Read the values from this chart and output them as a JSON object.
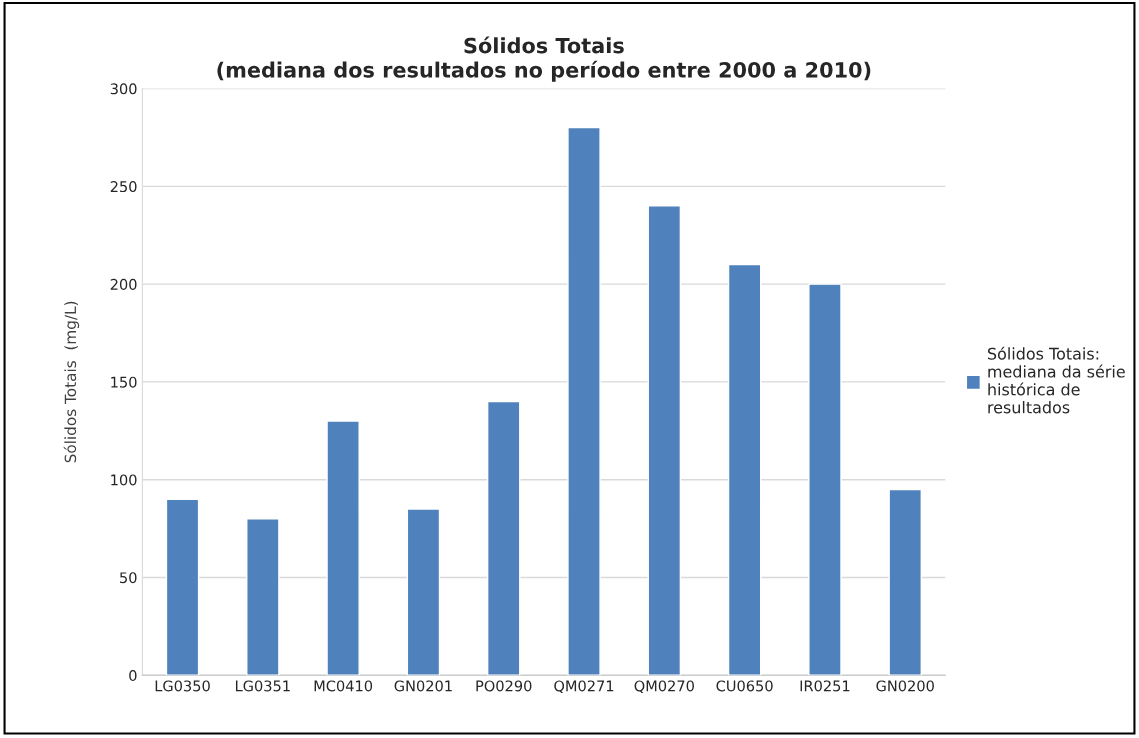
{
  "chart_data": {
    "type": "bar",
    "title": "Sólidos Totais\n(mediana dos resultados no período entre 2000 a 2010)",
    "ylabel": "Sólidos Totais  (mg/L)",
    "categories": [
      "LG0350",
      "LG0351",
      "MC0410",
      "GN0201",
      "PO0290",
      "QM0271",
      "QM0270",
      "CU0650",
      "IR0251",
      "GN0200"
    ],
    "series": [
      {
        "name": "Sólidos Totais:\nmediana da série\nhistórica de\nresultados",
        "color": "#4f81bd",
        "values": [
          90,
          80,
          130,
          85,
          140,
          280,
          240,
          210,
          200,
          95
        ]
      }
    ],
    "ylim": [
      0,
      300
    ],
    "yticks": [
      0,
      50,
      100,
      150,
      200,
      250,
      300
    ],
    "grid": "y",
    "legend": "right"
  }
}
